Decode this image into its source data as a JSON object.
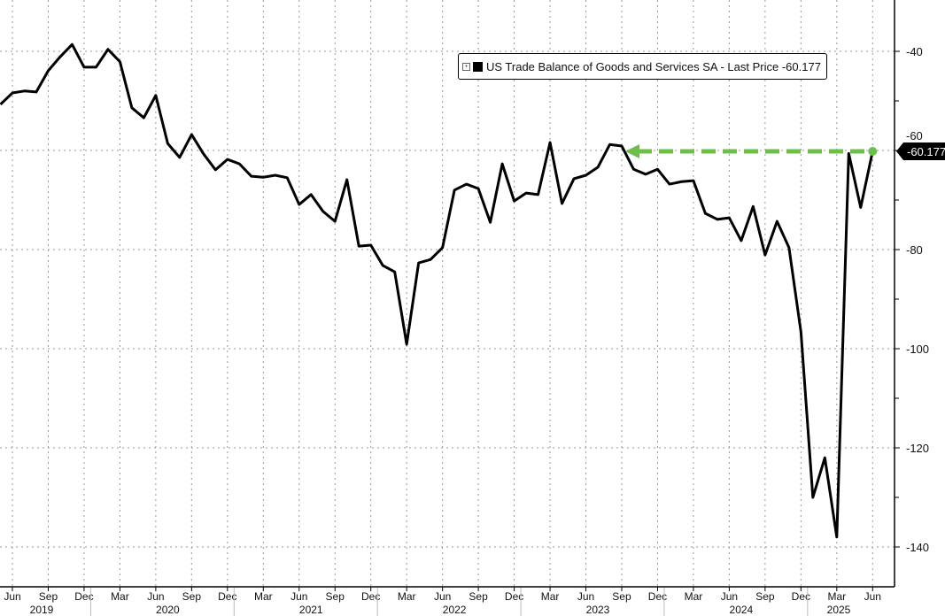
{
  "chart_data": {
    "type": "line",
    "title": "",
    "legend": {
      "label": "US Trade Balance of Goods and Services SA - Last Price -60.177",
      "placement": "top-right"
    },
    "last_price_label": "-60.177",
    "last_value": -60.177,
    "reference_line": {
      "from": "2023-09",
      "to": "2025-06",
      "value": -60.177,
      "color": "#6cc04a",
      "style": "dashed-arrow"
    },
    "ylim": [
      -148,
      -28
    ],
    "yticks": [
      -40,
      -60,
      -80,
      -100,
      -120,
      -140
    ],
    "ytick_labels": [
      "-40",
      "-60",
      "-80",
      "-100",
      "-120",
      "-140"
    ],
    "y_axis_side": "right",
    "grid": true,
    "xtick_labels": [
      "Jun",
      "Sep",
      "Dec",
      "Mar",
      "Jun",
      "Sep",
      "Dec",
      "Mar",
      "Jun",
      "Sep",
      "Dec",
      "Mar",
      "Jun",
      "Sep",
      "Dec",
      "Mar",
      "Jun",
      "Sep",
      "Dec",
      "Mar",
      "Jun",
      "Sep",
      "Dec",
      "Mar",
      "Jun"
    ],
    "year_labels": [
      "2019",
      "2020",
      "2021",
      "2022",
      "2023",
      "2024",
      "2025"
    ],
    "series": [
      {
        "color": "#000000",
        "x": [
          "2019-05",
          "2019-06",
          "2019-07",
          "2019-08",
          "2019-09",
          "2019-10",
          "2019-11",
          "2019-12",
          "2020-01",
          "2020-02",
          "2020-03",
          "2020-04",
          "2020-05",
          "2020-06",
          "2020-07",
          "2020-08",
          "2020-09",
          "2020-10",
          "2020-11",
          "2020-12",
          "2021-01",
          "2021-02",
          "2021-03",
          "2021-04",
          "2021-05",
          "2021-06",
          "2021-07",
          "2021-08",
          "2021-09",
          "2021-10",
          "2021-11",
          "2021-12",
          "2022-01",
          "2022-02",
          "2022-03",
          "2022-04",
          "2022-05",
          "2022-06",
          "2022-07",
          "2022-08",
          "2022-09",
          "2022-10",
          "2022-11",
          "2022-12",
          "2023-01",
          "2023-02",
          "2023-03",
          "2023-04",
          "2023-05",
          "2023-06",
          "2023-07",
          "2023-08",
          "2023-09",
          "2023-10",
          "2023-11",
          "2023-12",
          "2024-01",
          "2024-02",
          "2024-03",
          "2024-04",
          "2024-05",
          "2024-06",
          "2024-07",
          "2024-08",
          "2024-09",
          "2024-10",
          "2024-11",
          "2024-12",
          "2025-01",
          "2025-02",
          "2025-03",
          "2025-04",
          "2025-05",
          "2025-06"
        ],
        "values": [
          -50.7,
          -48.4,
          -48.0,
          -48.2,
          -43.9,
          -41.1,
          -38.6,
          -43.2,
          -43.2,
          -39.6,
          -42.1,
          -51.4,
          -53.4,
          -48.9,
          -58.6,
          -61.4,
          -56.8,
          -60.7,
          -63.9,
          -61.8,
          -62.7,
          -65.2,
          -65.4,
          -65.0,
          -65.5,
          -70.9,
          -68.9,
          -72.3,
          -74.3,
          -65.9,
          -79.3,
          -79.1,
          -83.2,
          -84.5,
          -99.1,
          -82.7,
          -82.0,
          -79.6,
          -68.0,
          -66.8,
          -67.7,
          -74.5,
          -62.7,
          -70.2,
          -68.6,
          -68.9,
          -58.4,
          -70.7,
          -65.7,
          -65.0,
          -63.4,
          -58.8,
          -59.1,
          -63.8,
          -64.8,
          -63.8,
          -66.8,
          -66.3,
          -66.1,
          -72.7,
          -73.9,
          -73.6,
          -78.2,
          -71.3,
          -81.1,
          -74.3,
          -79.6,
          -96.6,
          -130.0,
          -122.0,
          -138.0,
          -60.6,
          -71.5,
          -60.177
        ]
      }
    ]
  }
}
